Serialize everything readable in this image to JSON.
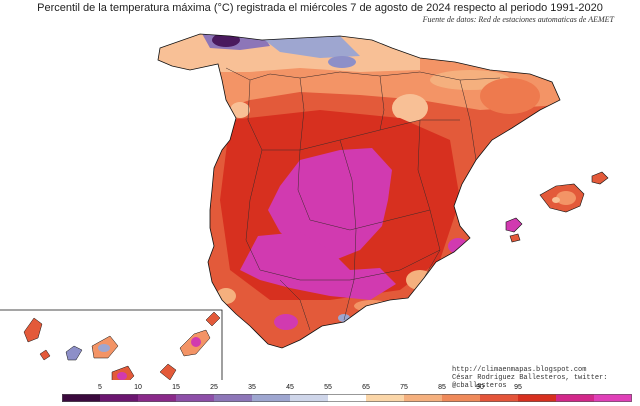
{
  "title": "Percentil de la temperatura máxima (°C) registrada el miércoles 7 de agosto de 2024 respecto al periodo 1991-2020",
  "subtitle": "Fuente de datos: Red de estaciones automaticas de AEMET",
  "credits": {
    "line1": "http://climaenmapas.blogspot.com",
    "line2": "César Rodríguez Ballesteros, twitter: @cballesteros"
  },
  "legend": {
    "ticks": [
      "5",
      "10",
      "15",
      "25",
      "35",
      "45",
      "55",
      "65",
      "75",
      "85",
      "90",
      "95"
    ],
    "colors": [
      "#3b0a3e",
      "#6b1670",
      "#8a2a8a",
      "#8d4fa8",
      "#8d76b8",
      "#9ea6d0",
      "#cfd6ea",
      "#ffffff",
      "#fbd6a8",
      "#f5b07e",
      "#ef8a5a",
      "#e4553a",
      "#d7301f",
      "#d2288a",
      "#e040b8"
    ]
  },
  "colors": {
    "sea": "#ffffff",
    "land_base": "#e35a3a",
    "hot": "#d7301f",
    "extreme": "#d13ab0",
    "mild": "#f5a26e",
    "warm": "#ee7a4e",
    "cool": "#8d8fc8",
    "cold": "#5a2a7a"
  }
}
